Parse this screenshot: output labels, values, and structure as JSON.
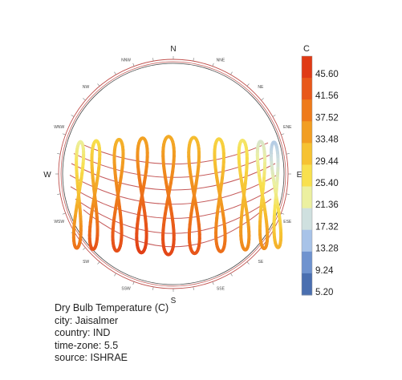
{
  "chart_data": {
    "type": "sunpath",
    "compass": {
      "major": [
        "N",
        "E",
        "S",
        "W"
      ],
      "minor": [
        "NNE",
        "NE",
        "ENE",
        "ESE",
        "SE",
        "SSE",
        "SSW",
        "SW",
        "WSW",
        "WNW",
        "NW",
        "NNW"
      ]
    },
    "legend": {
      "unit": "C",
      "ticks": [
        "45.60",
        "41.56",
        "37.52",
        "33.48",
        "29.44",
        "25.40",
        "21.36",
        "17.32",
        "13.28",
        "9.24",
        "5.20"
      ],
      "min": 5.2,
      "max": 45.6,
      "colors": [
        "#4a6fb0",
        "#6f93cf",
        "#a8c3e8",
        "#cfe0df",
        "#ecf0a0",
        "#f8e04e",
        "#f6c232",
        "#f29e22",
        "#ee7a1a",
        "#e8581a",
        "#e03a15"
      ]
    },
    "analemmas": [
      {
        "hour_index": 0,
        "temp": 30
      },
      {
        "hour_index": 1,
        "temp": 34
      },
      {
        "hour_index": 2,
        "temp": 37
      },
      {
        "hour_index": 3,
        "temp": 39
      },
      {
        "hour_index": 4,
        "temp": 38
      },
      {
        "hour_index": 5,
        "temp": 36
      },
      {
        "hour_index": 6,
        "temp": 33
      },
      {
        "hour_index": 7,
        "temp": 30
      },
      {
        "hour_index": 8,
        "temp": 27
      },
      {
        "hour_index": 9,
        "temp": 23
      }
    ]
  },
  "info": {
    "title": "Dry Bulb Temperature (C)",
    "city": "city: Jaisalmer",
    "country": "country: IND",
    "timezone": "time-zone: 5.5",
    "source": "source: ISHRAE"
  }
}
